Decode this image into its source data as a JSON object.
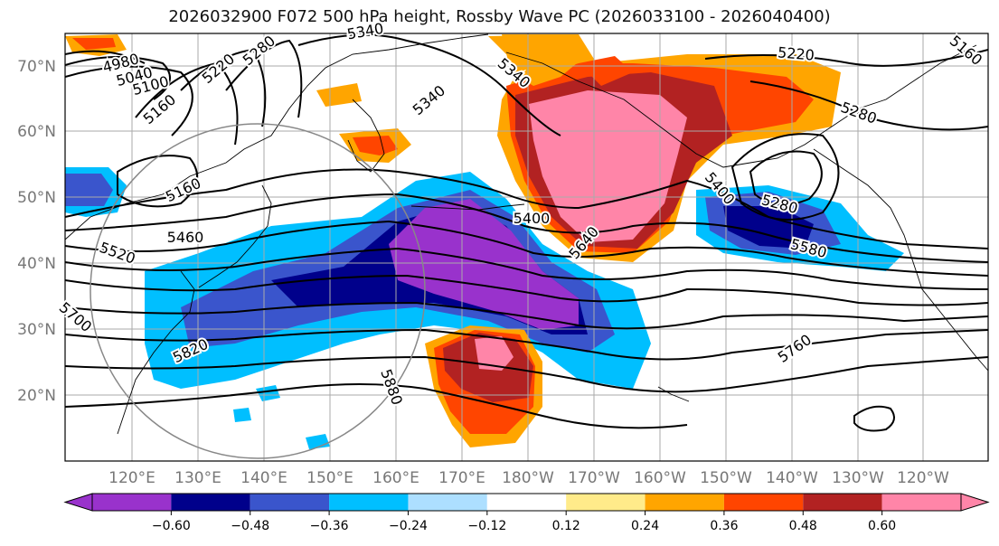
{
  "title": "2026032900 F072 500 hPa height, Rossby Wave PC (2026033100 - 2026040400)",
  "lat_ticks": [
    "70°N",
    "60°N",
    "50°N",
    "40°N",
    "30°N",
    "20°N"
  ],
  "lon_ticks": [
    "120°E",
    "130°E",
    "140°E",
    "150°E",
    "160°E",
    "170°E",
    "180°W",
    "170°W",
    "160°W",
    "150°W",
    "140°W",
    "130°W",
    "120°W"
  ],
  "contour_labels": [
    "4980",
    "5040",
    "5100",
    "5160",
    "5220",
    "5280",
    "5340",
    "5340",
    "5340",
    "5220",
    "5280",
    "5160",
    "5460",
    "5520",
    "5400",
    "5640",
    "5400",
    "5280",
    "5580",
    "5700",
    "5820",
    "5880",
    "5760",
    "5160"
  ],
  "colorbar": {
    "ticks": [
      "−0.60",
      "−0.48",
      "−0.36",
      "−0.24",
      "−0.12",
      "0.12",
      "0.24",
      "0.36",
      "0.48",
      "0.60"
    ],
    "colors": [
      "#9932CC",
      "#00008B",
      "#3A55CC",
      "#00BFFF",
      "#ADDFFF",
      "#FFFFFF",
      "#FFEB8A",
      "#FFA500",
      "#FF4500",
      "#B22222",
      "#FF85A8"
    ],
    "extend": "both"
  },
  "colors": {
    "border": "#000000",
    "grid": "#aaaaaa",
    "tick_text": "#777777",
    "contour": "#000000"
  }
}
